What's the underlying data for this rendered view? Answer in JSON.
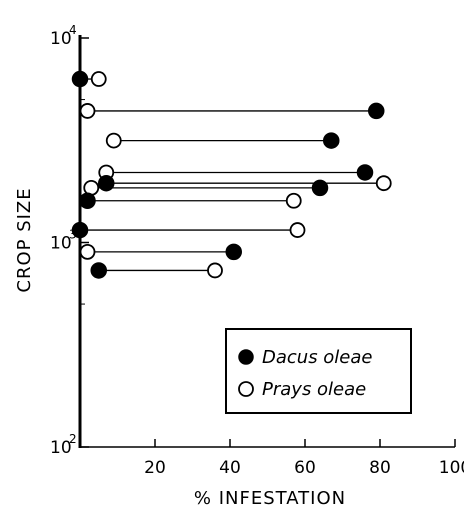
{
  "chart_data": {
    "type": "scatter",
    "xlabel": "% INFESTATION",
    "ylabel": "CROP SIZE",
    "xlim": [
      0,
      100
    ],
    "ylim": [
      100,
      10000
    ],
    "y_scale": "log",
    "x_ticks": [
      "20",
      "40",
      "60",
      "80",
      "100"
    ],
    "x_tick_values": [
      20,
      40,
      60,
      80,
      100
    ],
    "y_ticks": [
      {
        "value": 10000,
        "base": "10",
        "exp": "4"
      },
      {
        "value": 1000,
        "base": "10",
        "exp": "3"
      },
      {
        "value": 100,
        "base": "10",
        "exp": "2"
      }
    ],
    "legend_position": "lower-right",
    "series": [
      {
        "name": "Dacus oleae",
        "marker": "filled-circle",
        "color": "#000000"
      },
      {
        "name": "Prays oleae",
        "marker": "open-circle",
        "color": "#000000"
      }
    ],
    "pairs": [
      {
        "crop": 6300,
        "dacus": 0,
        "prays": 5
      },
      {
        "crop": 4400,
        "dacus": 79,
        "prays": 2
      },
      {
        "crop": 3150,
        "dacus": 67,
        "prays": 9
      },
      {
        "crop": 2200,
        "dacus": 76,
        "prays": 7
      },
      {
        "crop": 1950,
        "dacus": 7,
        "prays": 81
      },
      {
        "crop": 1850,
        "dacus": 64,
        "prays": 3
      },
      {
        "crop": 1600,
        "dacus": 2,
        "prays": 57
      },
      {
        "crop": 1150,
        "dacus": 0,
        "prays": 58
      },
      {
        "crop": 900,
        "dacus": 41,
        "prays": 2
      },
      {
        "crop": 730,
        "dacus": 5,
        "prays": 36
      }
    ]
  }
}
